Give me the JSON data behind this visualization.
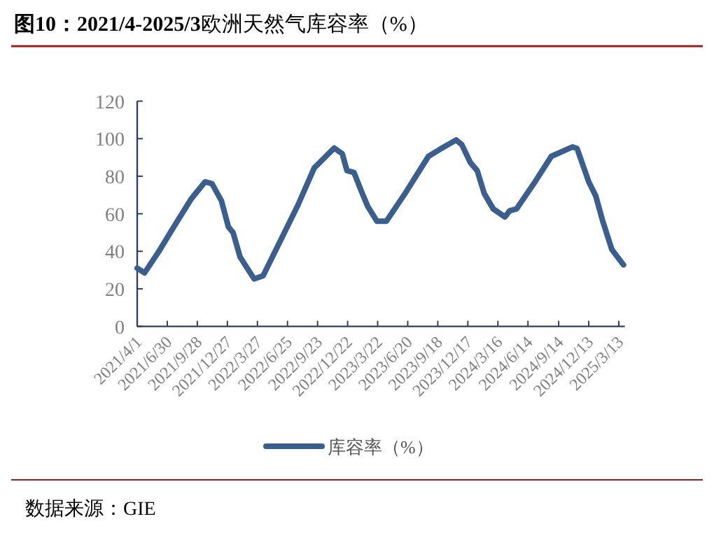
{
  "chart_data": {
    "type": "line",
    "title": "**图10：2021/4-2025/3**欧洲天然气库容率（%）",
    "annotations": [
      "数据来源：GIE"
    ],
    "x": [
      "2021-04-01",
      "2021-04-23",
      "2021-06-04",
      "2021-07-16",
      "2021-09-10",
      "2021-10-21",
      "2021-11-11",
      "2021-12-09",
      "2021-12-30",
      "2022-01-13",
      "2022-02-03",
      "2022-03-17",
      "2022-04-13",
      "2022-06-01",
      "2022-07-26",
      "2022-09-13",
      "2022-11-12",
      "2022-12-06",
      "2022-12-20",
      "2023-01-10",
      "2023-01-30",
      "2023-02-20",
      "2023-03-20",
      "2023-04-17",
      "2023-06-12",
      "2023-08-21",
      "2023-09-24",
      "2023-11-12",
      "2023-11-29",
      "2023-12-24",
      "2024-01-14",
      "2024-02-04",
      "2024-03-02",
      "2024-04-06",
      "2024-04-20",
      "2024-05-11",
      "2024-07-05",
      "2024-08-23",
      "2024-10-25",
      "2024-11-08",
      "2024-12-13",
      "2025-01-03",
      "2025-01-24",
      "2025-02-20",
      "2025-03-27"
    ],
    "series": [
      {
        "name": "库容率（%）",
        "color": "#3a5f8f",
        "values": [
          31,
          28.5,
          39.7,
          52,
          68,
          77,
          76,
          67,
          53,
          50,
          37,
          25.3,
          27,
          44.7,
          64.5,
          84.4,
          95,
          92,
          83,
          82,
          73,
          64,
          56,
          56,
          70.8,
          90.6,
          94.3,
          99.3,
          96.8,
          87.4,
          83,
          70.8,
          62.6,
          58.3,
          61.6,
          62.6,
          77,
          90.6,
          95.6,
          94.8,
          77,
          69.5,
          56,
          41,
          32.8
        ]
      }
    ],
    "xlim": [
      "2021-04-01",
      "2025-03-31"
    ],
    "xticks": [
      {
        "value": "2021-04-01",
        "label": "2021/4/1"
      },
      {
        "value": "2021-06-30",
        "label": "2021/6/30"
      },
      {
        "value": "2021-09-28",
        "label": "2021/9/28"
      },
      {
        "value": "2021-12-27",
        "label": "2021/12/27"
      },
      {
        "value": "2022-03-27",
        "label": "2022/3/27"
      },
      {
        "value": "2022-06-25",
        "label": "2022/6/25"
      },
      {
        "value": "2022-09-23",
        "label": "2022/9/23"
      },
      {
        "value": "2022-12-22",
        "label": "2022/12/22"
      },
      {
        "value": "2023-03-22",
        "label": "2023/3/22"
      },
      {
        "value": "2023-06-20",
        "label": "2023/6/20"
      },
      {
        "value": "2023-09-18",
        "label": "2023/9/18"
      },
      {
        "value": "2023-12-17",
        "label": "2023/12/17"
      },
      {
        "value": "2024-03-16",
        "label": "2024/3/16"
      },
      {
        "value": "2024-06-14",
        "label": "2024/6/14"
      },
      {
        "value": "2024-09-14",
        "label": "2024/9/14"
      },
      {
        "value": "2024-12-13",
        "label": "2024/12/13"
      },
      {
        "value": "2025-03-13",
        "label": "2025/3/13"
      }
    ],
    "ylim": [
      0,
      120
    ],
    "yticks": [
      0,
      20,
      40,
      60,
      80,
      100,
      120
    ],
    "legend": "bottom"
  }
}
